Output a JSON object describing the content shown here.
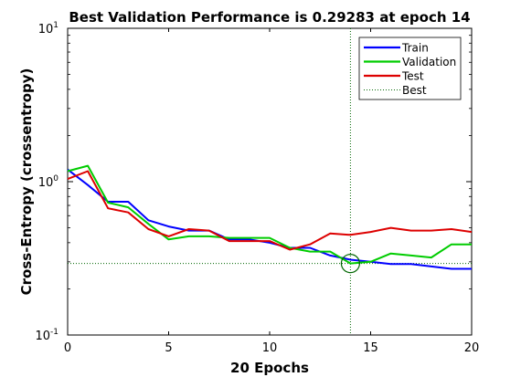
{
  "chart_data": {
    "type": "line",
    "title": "Best Validation Performance is 0.29283 at epoch 14",
    "xlabel": "20 Epochs",
    "ylabel": "Cross-Entropy  (crossentropy)",
    "xlim": [
      0,
      20
    ],
    "ylim": [
      0.1,
      10
    ],
    "yscale": "log",
    "grid": false,
    "legend_position": "top-right",
    "x_ticks": [
      0,
      5,
      10,
      15,
      20
    ],
    "y_ticks": [
      {
        "value": 0.1,
        "base": "10",
        "exp": "-1"
      },
      {
        "value": 1,
        "base": "10",
        "exp": "0"
      },
      {
        "value": 10,
        "base": "10",
        "exp": "1"
      }
    ],
    "x": [
      0,
      1,
      2,
      3,
      4,
      5,
      6,
      7,
      8,
      9,
      10,
      11,
      12,
      13,
      14,
      15,
      16,
      17,
      18,
      19,
      20
    ],
    "series": [
      {
        "name": "Train",
        "color": "#0000ff",
        "values": [
          1.2,
          0.95,
          0.74,
          0.74,
          0.56,
          0.51,
          0.48,
          0.48,
          0.42,
          0.42,
          0.4,
          0.37,
          0.37,
          0.33,
          0.31,
          0.3,
          0.29,
          0.29,
          0.28,
          0.27,
          0.27
        ]
      },
      {
        "name": "Validation",
        "color": "#00cc00",
        "values": [
          1.17,
          1.27,
          0.73,
          0.68,
          0.53,
          0.42,
          0.44,
          0.44,
          0.43,
          0.43,
          0.43,
          0.37,
          0.35,
          0.35,
          0.29283,
          0.3,
          0.34,
          0.33,
          0.32,
          0.39,
          0.39
        ]
      },
      {
        "name": "Test",
        "color": "#dd0000",
        "values": [
          1.04,
          1.17,
          0.67,
          0.63,
          0.49,
          0.44,
          0.49,
          0.48,
          0.41,
          0.41,
          0.41,
          0.36,
          0.39,
          0.46,
          0.45,
          0.47,
          0.5,
          0.48,
          0.48,
          0.49,
          0.47
        ]
      }
    ],
    "best": {
      "label": "Best",
      "epoch": 14,
      "value": 0.29283,
      "color": "#006600"
    }
  }
}
